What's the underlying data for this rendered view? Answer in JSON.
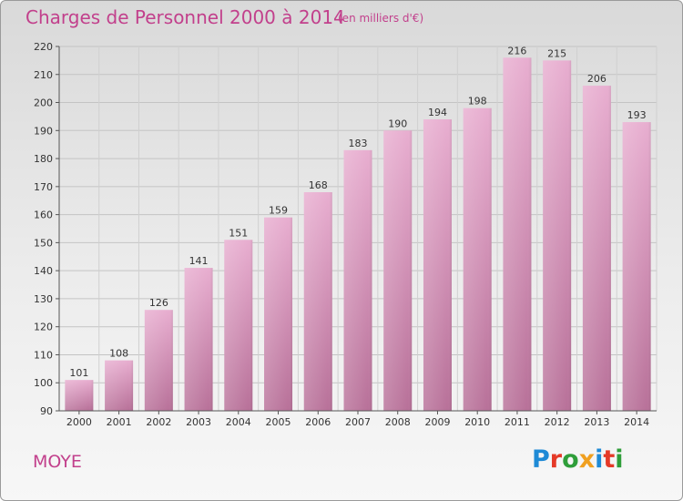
{
  "header": {
    "title": "Charges de Personnel 2000 à 2014",
    "unit": "(en milliers d'€)"
  },
  "footer": {
    "commune": "MOYE",
    "logo_text": "Proxiti"
  },
  "colors": {
    "title": "#c2408c",
    "bar_top": "#e8aed0",
    "bar_bottom": "#b87199",
    "logo_letters": [
      "#1f8ad6",
      "#e53a28",
      "#2f9e3a",
      "#f0a020",
      "#1f8ad6",
      "#e53a28",
      "#2f9e3a"
    ]
  },
  "chart_data": {
    "type": "bar",
    "categories": [
      "2000",
      "2001",
      "2002",
      "2003",
      "2004",
      "2005",
      "2006",
      "2007",
      "2008",
      "2009",
      "2010",
      "2011",
      "2012",
      "2013",
      "2014"
    ],
    "values": [
      101,
      108,
      126,
      141,
      151,
      159,
      168,
      183,
      190,
      194,
      198,
      216,
      215,
      206,
      193
    ],
    "ylim": [
      90,
      220
    ],
    "yticks": [
      90,
      100,
      110,
      120,
      130,
      140,
      150,
      160,
      170,
      180,
      190,
      200,
      210,
      220
    ],
    "grid": true
  }
}
